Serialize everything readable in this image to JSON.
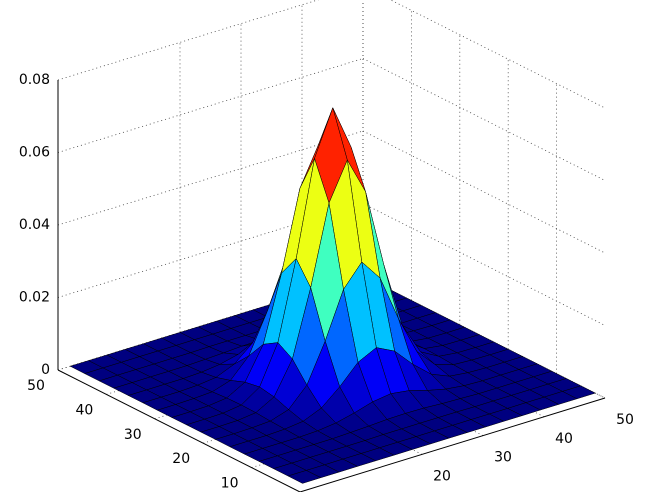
{
  "chart_data": {
    "type": "surface",
    "colormap": "jet",
    "grid": true,
    "x": [
      2,
      5,
      8,
      11,
      14,
      17,
      20,
      23,
      26,
      29,
      32,
      35,
      38,
      41,
      44,
      47,
      50
    ],
    "y": [
      2,
      5,
      8,
      11,
      14,
      17,
      20,
      23,
      26,
      29,
      32,
      35,
      38,
      41,
      44,
      47,
      50
    ],
    "z": [
      [
        0,
        0,
        0,
        0,
        0,
        0,
        0,
        0,
        0,
        0,
        0,
        0,
        0,
        0,
        0,
        0,
        0
      ],
      [
        0,
        0,
        0,
        0,
        0,
        0,
        0,
        0,
        0,
        0,
        0,
        0,
        0,
        0,
        0,
        0,
        0
      ],
      [
        0,
        0,
        0,
        0,
        0,
        0,
        0.0001,
        0.0001,
        0.0001,
        0.0001,
        0.0001,
        0,
        0,
        0,
        0,
        0,
        0
      ],
      [
        0,
        0,
        0,
        0,
        0,
        0.0002,
        0.0004,
        0.0007,
        0.0008,
        0.0007,
        0.0004,
        0.0002,
        0,
        0,
        0,
        0,
        0
      ],
      [
        0,
        0,
        0,
        0,
        0.0002,
        0.0008,
        0.002,
        0.0035,
        0.0042,
        0.0035,
        0.002,
        0.0008,
        0.0002,
        0,
        0,
        0,
        0
      ],
      [
        0,
        0,
        0,
        0.0002,
        0.0008,
        0.0029,
        0.0072,
        0.0124,
        0.0149,
        0.0124,
        0.0072,
        0.0029,
        0.0008,
        0.0002,
        0,
        0,
        0
      ],
      [
        0,
        0,
        0.0001,
        0.0004,
        0.002,
        0.0072,
        0.0178,
        0.0305,
        0.0365,
        0.0305,
        0.0178,
        0.0072,
        0.002,
        0.0004,
        0.0001,
        0,
        0
      ],
      [
        0,
        0,
        0.0001,
        0.0007,
        0.0035,
        0.0124,
        0.0305,
        0.0523,
        0.0626,
        0.0523,
        0.0305,
        0.0124,
        0.0035,
        0.0007,
        0.0001,
        0,
        0
      ],
      [
        0,
        0,
        0.0001,
        0.0008,
        0.0042,
        0.0149,
        0.0365,
        0.0626,
        0.075,
        0.0626,
        0.0365,
        0.0149,
        0.0042,
        0.0008,
        0.0001,
        0,
        0
      ],
      [
        0,
        0,
        0.0001,
        0.0007,
        0.0035,
        0.0124,
        0.0305,
        0.0523,
        0.0626,
        0.0523,
        0.0305,
        0.0124,
        0.0035,
        0.0007,
        0.0001,
        0,
        0
      ],
      [
        0,
        0,
        0.0001,
        0.0004,
        0.002,
        0.0072,
        0.0178,
        0.0305,
        0.0365,
        0.0305,
        0.0178,
        0.0072,
        0.002,
        0.0004,
        0.0001,
        0,
        0
      ],
      [
        0,
        0,
        0,
        0.0002,
        0.0008,
        0.0029,
        0.0072,
        0.0124,
        0.0149,
        0.0124,
        0.0072,
        0.0029,
        0.0008,
        0.0002,
        0,
        0,
        0
      ],
      [
        0,
        0,
        0,
        0,
        0.0002,
        0.0008,
        0.002,
        0.0035,
        0.0042,
        0.0035,
        0.002,
        0.0008,
        0.0002,
        0,
        0,
        0,
        0
      ],
      [
        0,
        0,
        0,
        0,
        0,
        0.0002,
        0.0004,
        0.0007,
        0.0008,
        0.0007,
        0.0004,
        0.0002,
        0,
        0,
        0,
        0,
        0
      ],
      [
        0,
        0,
        0,
        0,
        0,
        0,
        0.0001,
        0.0001,
        0.0001,
        0.0001,
        0.0001,
        0,
        0,
        0,
        0,
        0,
        0
      ],
      [
        0,
        0,
        0,
        0,
        0,
        0,
        0,
        0,
        0,
        0,
        0,
        0,
        0,
        0,
        0,
        0,
        0
      ],
      [
        0,
        0,
        0,
        0,
        0,
        0,
        0,
        0,
        0,
        0,
        0,
        0,
        0,
        0,
        0,
        0,
        0
      ]
    ],
    "xlim": [
      0,
      50
    ],
    "ylim": [
      0,
      50
    ],
    "zlim": [
      0,
      0.08
    ],
    "xticks": [
      20,
      30,
      40,
      50
    ],
    "yticks": [
      10,
      20,
      30,
      40,
      50
    ],
    "zticks": [
      0,
      0.02,
      0.04,
      0.06,
      0.08
    ]
  }
}
